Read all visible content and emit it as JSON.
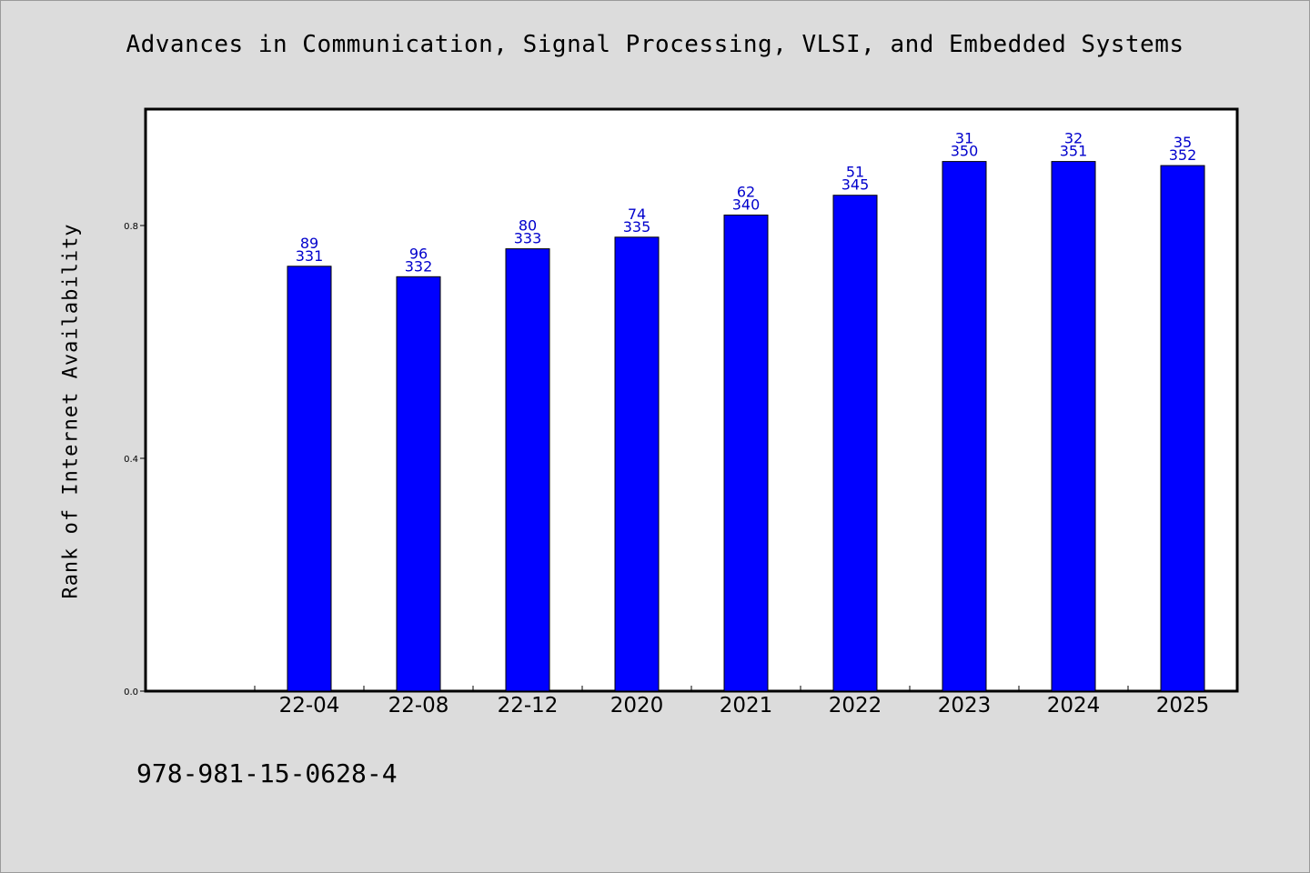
{
  "header": {
    "title": "Advances in Communication, Signal Processing, VLSI, and Embedded Systems"
  },
  "footer": {
    "isbn": "978-981-15-0628-4"
  },
  "chart_data": {
    "type": "bar",
    "title": "Advances in Communication, Signal Processing, VLSI, and Embedded Systems",
    "xlabel": "",
    "ylabel": "Rank of Internet Availability",
    "categories": [
      "22-04",
      "22-08",
      "22-12",
      "2020",
      "2021",
      "2022",
      "2023",
      "2024",
      "2025"
    ],
    "values": [
      0.73,
      0.712,
      0.76,
      0.78,
      0.818,
      0.852,
      0.91,
      0.91,
      0.903
    ],
    "labels_top": [
      "89",
      "96",
      "80",
      "74",
      "62",
      "51",
      "31",
      "32",
      "35"
    ],
    "labels_bottom": [
      "331",
      "332",
      "333",
      "335",
      "340",
      "345",
      "350",
      "351",
      "352"
    ],
    "ylim": [
      0,
      1.0
    ],
    "yticks": [
      0.0,
      0.4,
      0.8
    ],
    "ytick_labels": [
      "0.0",
      "0.4",
      "0.8"
    ],
    "grid": false,
    "colors": {
      "bar": "#0000ff",
      "bar_label": "#0000cc",
      "plot_background": "#ffffff",
      "page_background": "#dcdcdc"
    }
  }
}
